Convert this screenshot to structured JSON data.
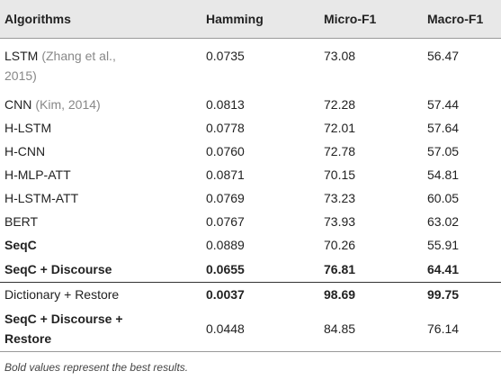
{
  "table": {
    "headers": [
      "Algorithms",
      "Hamming",
      "Micro-F1",
      "Macro-F1"
    ],
    "rows": [
      {
        "cells": [
          "LSTM",
          "0.0735",
          "73.08",
          "56.47"
        ],
        "cite": "(Zhang et al., 2015)"
      },
      {
        "cells": [
          "CNN",
          "0.0813",
          "72.28",
          "57.44"
        ],
        "cite": "(Kim, 2014)"
      },
      {
        "cells": [
          "H-LSTM",
          "0.0778",
          "72.01",
          "57.64"
        ]
      },
      {
        "cells": [
          "H-CNN",
          "0.0760",
          "72.78",
          "57.05"
        ]
      },
      {
        "cells": [
          "H-MLP-ATT",
          "0.0871",
          "70.15",
          "54.81"
        ]
      },
      {
        "cells": [
          "H-LSTM-ATT",
          "0.0769",
          "73.23",
          "60.05"
        ]
      },
      {
        "cells": [
          "BERT",
          "0.0767",
          "73.93",
          "63.02"
        ]
      },
      {
        "cells": [
          "SeqC",
          "0.0889",
          "70.26",
          "55.91"
        ]
      },
      {
        "cells": [
          "SeqC + Discourse",
          "0.0655",
          "76.81",
          "64.41"
        ]
      },
      {
        "cells": [
          "Dictionary + Restore",
          "0.0037",
          "98.69",
          "99.75"
        ]
      },
      {
        "cells": [
          "SeqC + Discourse + Restore",
          "0.0448",
          "84.85",
          "76.14"
        ]
      }
    ]
  },
  "footnote": "Bold values represent the best results."
}
